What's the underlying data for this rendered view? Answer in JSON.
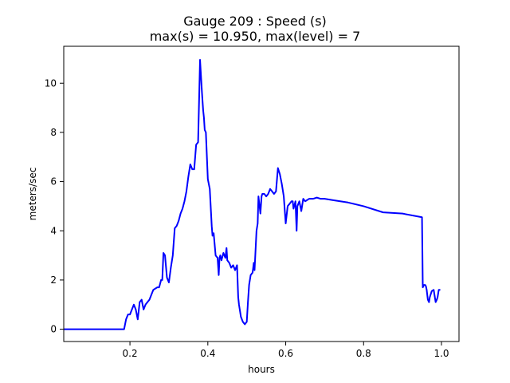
{
  "chart_data": {
    "type": "line",
    "title_line1": "Gauge 209 : Speed (s)",
    "title_line2": "max(s) =  10.950,    max(level) = 7",
    "xlabel": "hours",
    "ylabel": "meters/sec",
    "xlim": [
      0.03,
      1.045
    ],
    "ylim": [
      -0.5,
      11.5
    ],
    "x_ticks": [
      0.2,
      0.4,
      0.6,
      0.8,
      1.0
    ],
    "x_tick_labels": [
      "0.2",
      "0.4",
      "0.6",
      "0.8",
      "1.0"
    ],
    "y_ticks": [
      0,
      2,
      4,
      6,
      8,
      10
    ],
    "y_tick_labels": [
      "0",
      "2",
      "4",
      "6",
      "8",
      "10"
    ],
    "grid": false,
    "line_color": "#0000ff",
    "series": [
      {
        "x": [
          0.03,
          0.185,
          0.19,
          0.195,
          0.2,
          0.21,
          0.215,
          0.22,
          0.225,
          0.23,
          0.235,
          0.24,
          0.245,
          0.25,
          0.255,
          0.26,
          0.27,
          0.275,
          0.28,
          0.283,
          0.286,
          0.29,
          0.295,
          0.3,
          0.305,
          0.31,
          0.315,
          0.32,
          0.325,
          0.33,
          0.335,
          0.34,
          0.345,
          0.35,
          0.355,
          0.36,
          0.365,
          0.37,
          0.375,
          0.38,
          0.385,
          0.388,
          0.39,
          0.392,
          0.395,
          0.4,
          0.405,
          0.41,
          0.412,
          0.415,
          0.42,
          0.425,
          0.428,
          0.43,
          0.432,
          0.435,
          0.44,
          0.445,
          0.448,
          0.45,
          0.455,
          0.46,
          0.465,
          0.47,
          0.475,
          0.478,
          0.48,
          0.485,
          0.49,
          0.495,
          0.5,
          0.503,
          0.506,
          0.51,
          0.515,
          0.518,
          0.52,
          0.525,
          0.528,
          0.53,
          0.535,
          0.538,
          0.54,
          0.545,
          0.55,
          0.555,
          0.56,
          0.565,
          0.57,
          0.575,
          0.58,
          0.585,
          0.59,
          0.595,
          0.6,
          0.605,
          0.61,
          0.615,
          0.618,
          0.62,
          0.625,
          0.628,
          0.63,
          0.635,
          0.64,
          0.645,
          0.65,
          0.66,
          0.67,
          0.68,
          0.69,
          0.7,
          0.72,
          0.74,
          0.76,
          0.8,
          0.85,
          0.9,
          0.95,
          0.952,
          0.955,
          0.958,
          0.96,
          0.962,
          0.965,
          0.968,
          0.97,
          0.975,
          0.98,
          0.985,
          0.988,
          0.99,
          0.993,
          0.997
        ],
        "y": [
          0.0,
          0.0,
          0.4,
          0.6,
          0.6,
          1.0,
          0.8,
          0.4,
          1.1,
          1.2,
          0.8,
          1.0,
          1.1,
          1.2,
          1.4,
          1.6,
          1.7,
          1.7,
          2.0,
          2.0,
          3.1,
          3.0,
          2.1,
          1.9,
          2.5,
          3.0,
          4.1,
          4.2,
          4.4,
          4.7,
          4.9,
          5.2,
          5.6,
          6.2,
          6.7,
          6.5,
          6.5,
          7.5,
          7.6,
          10.95,
          9.6,
          8.9,
          8.6,
          8.1,
          8.0,
          6.1,
          5.7,
          4.2,
          3.8,
          3.9,
          3.0,
          2.9,
          2.2,
          2.9,
          3.0,
          2.8,
          3.1,
          2.9,
          3.3,
          2.8,
          2.7,
          2.5,
          2.6,
          2.4,
          2.6,
          1.3,
          1.0,
          0.5,
          0.3,
          0.2,
          0.3,
          1.1,
          1.8,
          2.2,
          2.3,
          2.7,
          2.4,
          4.0,
          4.3,
          5.4,
          4.7,
          5.4,
          5.5,
          5.5,
          5.4,
          5.5,
          5.7,
          5.6,
          5.5,
          5.6,
          6.55,
          6.3,
          5.9,
          5.4,
          4.3,
          5.0,
          5.1,
          5.2,
          5.2,
          4.9,
          5.2,
          4.0,
          5.0,
          5.2,
          4.8,
          5.3,
          5.2,
          5.3,
          5.3,
          5.35,
          5.3,
          5.3,
          5.25,
          5.2,
          5.15,
          5.0,
          4.75,
          4.7,
          4.55,
          1.7,
          1.8,
          1.8,
          1.75,
          1.6,
          1.2,
          1.1,
          1.3,
          1.55,
          1.6,
          1.1,
          1.2,
          1.3,
          1.6,
          1.6
        ]
      }
    ]
  }
}
